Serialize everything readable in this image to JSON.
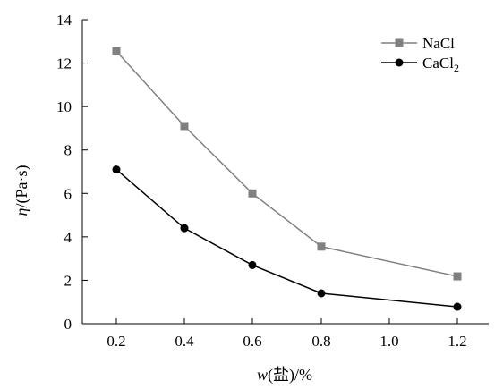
{
  "chart_data": {
    "type": "line",
    "x": [
      0.2,
      0.4,
      0.6,
      0.8,
      1.2
    ],
    "x_tick_labels": [
      "0.2",
      "0.4",
      "0.6",
      "0.8",
      "1.0",
      "1.2"
    ],
    "y_tick_labels": [
      "0",
      "2",
      "4",
      "6",
      "8",
      "10",
      "12",
      "14"
    ],
    "series": [
      {
        "name": "NaCl",
        "values": [
          12.55,
          9.1,
          6.0,
          3.55,
          2.18
        ],
        "color": "#808080",
        "marker": "square"
      },
      {
        "name": "CaCl2",
        "values": [
          7.1,
          4.4,
          2.7,
          1.4,
          0.78
        ],
        "color": "#000000",
        "marker": "circle"
      }
    ],
    "xlabel": "w(盐)/%",
    "ylabel": "η/(Pa·s)",
    "ylim": [
      0,
      14
    ],
    "grid": false,
    "legend_position": "top-right"
  }
}
